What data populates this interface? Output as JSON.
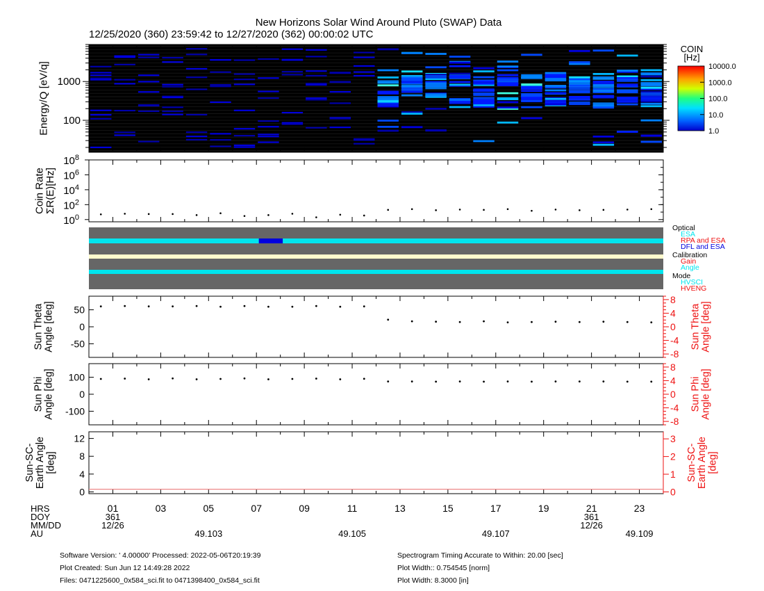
{
  "title": "New Horizons Solar Wind Around Pluto (SWAP) Data",
  "subtitle": "12/25/2020 (360) 23:59:42 to 12/27/2020 (362) 00:00:02 UTC",
  "colors": {
    "dots": "#000000",
    "red_axis": "#ee1111",
    "grey_band": "#666666",
    "cyan": "#00e5ee",
    "cream": "#fffacd",
    "blue": "#0000dd",
    "bg": "#000000"
  },
  "spectrogram": {
    "ylabel": "Energy/Q [eV/q]",
    "yticks": [
      "1000",
      "100"
    ],
    "colorbar": {
      "title": "COIN",
      "unit": "[Hz]",
      "ticks": [
        "10000.0",
        "1000.0",
        "100.0",
        "10.0",
        "1.0"
      ],
      "scale": "log",
      "range": [
        1,
        10000
      ]
    },
    "yrange": [
      15,
      9000
    ],
    "yscale": "log"
  },
  "chart_data": [
    {
      "type": "scatter",
      "panel": "coin-rate",
      "ylabel": [
        "Coin Rate",
        "ΣR(E)[Hz]"
      ],
      "yscale": "log",
      "ylim": [
        0.5,
        100000000
      ],
      "ytick_labels": [
        {
          "base": "10",
          "exp": "8"
        },
        {
          "base": "10",
          "exp": "6"
        },
        {
          "base": "10",
          "exp": "4"
        },
        {
          "base": "10",
          "exp": "2"
        },
        {
          "base": "10",
          "exp": "0"
        }
      ],
      "x_hours": [
        0.5,
        1.5,
        2.5,
        3.5,
        4.5,
        5.5,
        6.5,
        7.5,
        8.5,
        9.5,
        10.5,
        11.5,
        12.5,
        13.5,
        14.5,
        15.5,
        16.5,
        17.5,
        18.5,
        19.5,
        20.5,
        21.5,
        22.5,
        23.5
      ],
      "y": [
        5,
        6,
        5.5,
        5.5,
        4,
        7,
        3,
        4,
        6,
        2,
        4.5,
        3.5,
        20,
        25,
        18,
        22,
        20,
        25,
        15,
        22,
        18,
        20,
        22,
        25
      ]
    },
    {
      "type": "scatter",
      "panel": "sun-theta",
      "ylabel": [
        "Sun Theta",
        "Angle [deg]"
      ],
      "ylim": [
        -90,
        90
      ],
      "yticks": [
        50,
        0,
        -50
      ],
      "ytick_labels": [
        "50",
        "0",
        "-50"
      ],
      "right_ylabel": [
        "Sun Theta",
        "Angle [deg]"
      ],
      "right_ylim": [
        -9,
        9
      ],
      "right_yticks": [
        "8",
        "4",
        "0",
        "-4",
        "-8"
      ],
      "x_hours": [
        0.5,
        1.5,
        2.5,
        3.5,
        4.5,
        5.5,
        6.5,
        7.5,
        8.5,
        9.5,
        10.5,
        11.5,
        12.5,
        13.5,
        14.5,
        15.5,
        16.5,
        17.5,
        18.5,
        19.5,
        20.5,
        21.5,
        22.5,
        23.5
      ],
      "y": [
        60,
        61,
        60,
        60,
        61,
        59,
        61,
        59,
        59,
        61,
        59,
        60,
        21,
        16,
        15,
        14,
        16,
        13,
        14,
        15,
        14,
        15,
        14,
        13
      ]
    },
    {
      "type": "scatter",
      "panel": "sun-phi",
      "ylabel": [
        "Sun Phi",
        "Angle [deg]"
      ],
      "ylim": [
        -180,
        180
      ],
      "yticks": [
        100,
        0,
        -100
      ],
      "ytick_labels": [
        "100",
        "0",
        "-100"
      ],
      "right_ylabel": [
        "Sun Phi",
        "Angle [deg]"
      ],
      "right_ylim": [
        -9,
        9
      ],
      "right_yticks": [
        "8",
        "4",
        "0",
        "-4",
        "-8"
      ],
      "x_hours": [
        0.5,
        1.5,
        2.5,
        3.5,
        4.5,
        5.5,
        6.5,
        7.5,
        8.5,
        9.5,
        10.5,
        11.5,
        12.5,
        13.5,
        14.5,
        15.5,
        16.5,
        17.5,
        18.5,
        19.5,
        20.5,
        21.5,
        22.5,
        23.5
      ],
      "y": [
        90,
        92,
        88,
        93,
        88,
        90,
        93,
        88,
        90,
        92,
        88,
        91,
        75,
        75,
        74,
        75,
        74,
        75,
        74,
        75,
        75,
        75,
        74,
        74
      ]
    },
    {
      "type": "line",
      "panel": "sun-sc-earth",
      "ylabel": [
        "Sun-SC-",
        "Earth Angle",
        "[deg]"
      ],
      "ylim": [
        -0.4,
        13.5
      ],
      "yticks": [
        12,
        8,
        4,
        0
      ],
      "ytick_labels": [
        "12",
        "8",
        "4",
        "0"
      ],
      "right_ylabel": [
        "Sun-SC-",
        "Earth Angle",
        "[deg]"
      ],
      "right_ylim": [
        -0.1,
        3.4
      ],
      "right_yticks": [
        "3",
        "2",
        "1",
        "0"
      ],
      "x_hours": [
        0,
        24
      ],
      "y": [
        0.6,
        0.6
      ]
    }
  ],
  "mode_panel": {
    "legend_groups": [
      {
        "header": "Optical",
        "items": [
          {
            "label": "ESA",
            "color": "#00e5ee"
          },
          {
            "label": "RPA and ESA",
            "color": "#ee1111"
          },
          {
            "label": "DFL and ESA",
            "color": "#0000dd"
          }
        ]
      },
      {
        "header": "Calibration",
        "items": [
          {
            "label": "Gain",
            "color": "#ee1111"
          },
          {
            "label": "Angle",
            "color": "#00e5ee"
          }
        ]
      },
      {
        "header": "Mode",
        "items": [
          {
            "label": "HVSCI",
            "color": "#00e5ee"
          },
          {
            "label": "HVENG",
            "color": "#ee1111"
          }
        ]
      }
    ],
    "blue_segment_hours": [
      7.1,
      8.1
    ]
  },
  "time_axis": {
    "row_labels": [
      "HRS",
      "DOY",
      "MM/DD",
      "AU"
    ],
    "hour_labels": [
      "01",
      "03",
      "05",
      "07",
      "09",
      "11",
      "13",
      "15",
      "17",
      "19",
      "21",
      "23"
    ],
    "hour_values": [
      1,
      3,
      5,
      7,
      9,
      11,
      13,
      15,
      17,
      19,
      21,
      23
    ],
    "doy_marks": [
      {
        "hour": 1,
        "doy": "361",
        "date": "12/26"
      },
      {
        "hour": 21,
        "doy": "361",
        "date": "12/26"
      }
    ],
    "au_marks": [
      {
        "hour": 5,
        "au": "49.103"
      },
      {
        "hour": 11,
        "au": "49.105"
      },
      {
        "hour": 17,
        "au": "49.107"
      },
      {
        "hour": 23,
        "au": "49.109"
      }
    ]
  },
  "footer": {
    "left": [
      "Software Version:  ' 4.00000'  Processed: 2022-05-06T20:19:39",
      "Plot Created: Sun Jun 12 14:49:28 2022",
      "Files: 0471225600_0x584_sci.fit to 0471398400_0x584_sci.fit"
    ],
    "right": [
      "Spectrogram Timing Accurate to Within: 20.00 [sec]",
      "Plot Width:: 0.754545 [norm]",
      "Plot Width: 8.3000 [in]"
    ]
  }
}
